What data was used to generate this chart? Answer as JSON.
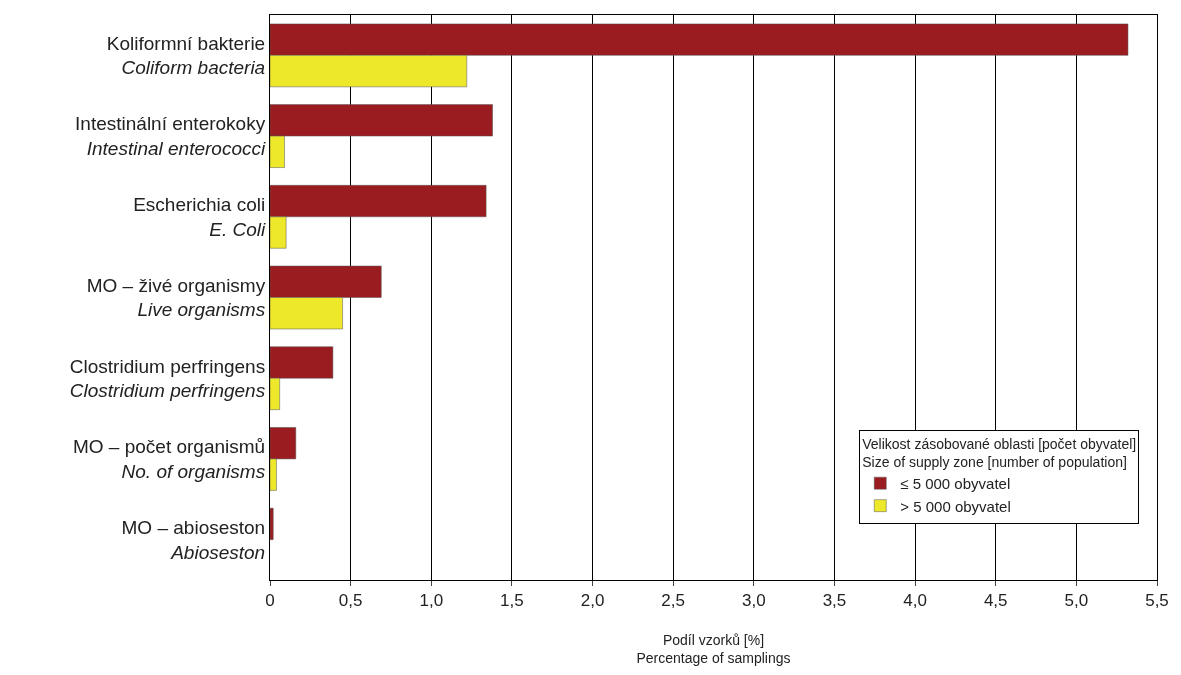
{
  "chart_data": {
    "type": "bar",
    "orientation": "horizontal",
    "categories": [
      "Koliformní bakterie\nColiform bacteria",
      "Intestinální enterokoky\nIntestinal enterococci",
      "Escherichia coli\nE. Coli",
      "MO – živé organismy\nLive organisms",
      "Clostridium perfringens\nClostridium perfringens",
      "MO – počet organismů\nNo. of organisms",
      "MO – abioseston\nAbioseston"
    ],
    "series": [
      {
        "name": "≤ 5 000 obyvatel",
        "color": "#9b1c20",
        "values": [
          5.32,
          1.38,
          1.34,
          0.69,
          0.39,
          0.16,
          0.02
        ]
      },
      {
        "name": "> 5 000 obyvatel",
        "color": "#ede82a",
        "values": [
          1.22,
          0.09,
          0.1,
          0.45,
          0.06,
          0.04,
          null
        ]
      }
    ],
    "xlabel": "Podíl vzorků [%]\nPercentage of samplings",
    "legend_title": "Velikost zásobované oblasti [počet obyvatel]\nSize of supply zone [number of population]",
    "xlim": [
      0,
      5.5
    ],
    "xticks": [
      0,
      {
        "value": 0.5,
        "label": "0,5"
      },
      {
        "value": 1,
        "label": "1,0"
      },
      {
        "value": 1.5,
        "label": "1,5"
      },
      {
        "value": 2,
        "label": "2,0"
      },
      {
        "value": 2.5,
        "label": "2,5"
      },
      {
        "value": 3,
        "label": "3,0"
      },
      {
        "value": 3.5,
        "label": "3,5"
      },
      {
        "value": 4,
        "label": "4,0"
      },
      {
        "value": 4.5,
        "label": "4,5"
      },
      {
        "value": 5,
        "label": "5,0"
      },
      {
        "value": 5.5,
        "label": "5,5"
      }
    ],
    "grid": "x",
    "legend": "bottom right"
  }
}
